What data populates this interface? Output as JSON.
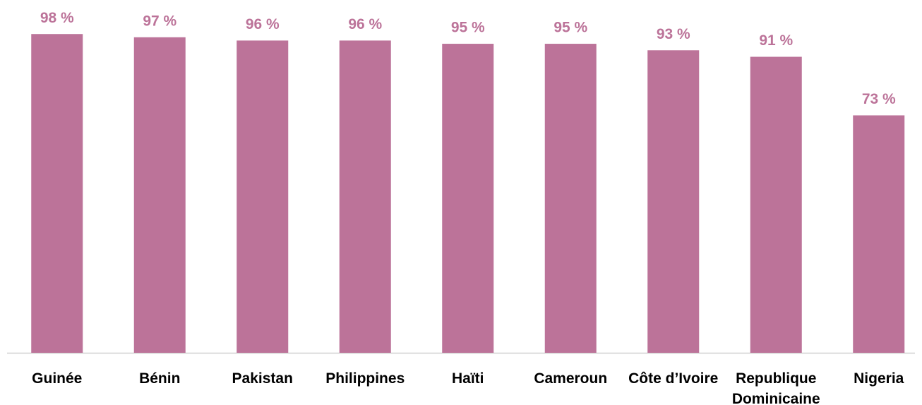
{
  "chart_data": {
    "type": "bar",
    "categories": [
      "Guinée",
      "Bénin",
      "Pakistan",
      "Philippines",
      "Haïti",
      "Cameroun",
      "Côte d’Ivoire",
      "Republique Dominicaine",
      "Nigeria"
    ],
    "values": [
      98,
      97,
      96,
      96,
      95,
      95,
      93,
      91,
      73
    ],
    "value_labels": [
      "98 %",
      "97 %",
      "96 %",
      "96 %",
      "95 %",
      "95 %",
      "93 %",
      "91 %",
      "73 %"
    ],
    "color": "#bc7399"
  }
}
